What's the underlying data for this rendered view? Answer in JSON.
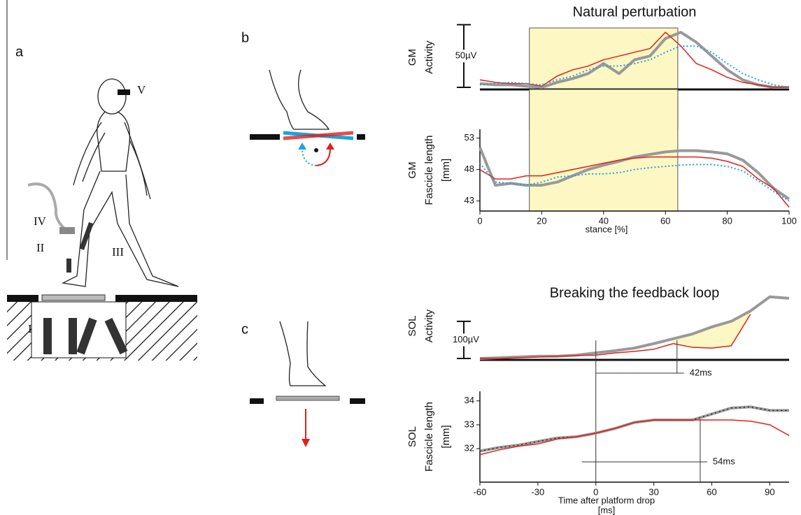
{
  "panel_labels": [
    "a",
    "b",
    "c"
  ],
  "diagram_labels": [
    "I",
    "II",
    "III",
    "IV",
    "V"
  ],
  "chart_data": [
    {
      "type": "line",
      "title": "Natural perturbation",
      "ylabel": [
        "GM",
        "Activity"
      ],
      "x": [
        0,
        5,
        10,
        15,
        20,
        25,
        30,
        35,
        40,
        45,
        50,
        55,
        60,
        65,
        70,
        75,
        80,
        85,
        90,
        95,
        100
      ],
      "xlim": [
        0,
        100
      ],
      "ylim": [
        0,
        48
      ],
      "highlight_range": [
        16,
        64
      ],
      "highlight_color": "#fdf7c3",
      "scale_bar": {
        "value": 50,
        "label": "50µV"
      },
      "series": [
        {
          "color": "#999999",
          "values": [
            3,
            2,
            2,
            1,
            0,
            4,
            7,
            11,
            19,
            11,
            22,
            25,
            39,
            44,
            36,
            25,
            14,
            6,
            2,
            0,
            0
          ]
        },
        {
          "color": "#e0201b",
          "values": [
            6,
            4,
            3,
            3,
            1,
            9,
            14,
            17,
            22,
            25,
            28,
            31,
            44,
            33,
            19,
            14,
            8,
            4,
            2,
            0,
            0
          ]
        },
        {
          "color": "#1aa3e0",
          "style": "dotted",
          "values": [
            2,
            3,
            4,
            3,
            2,
            6,
            9,
            14,
            17,
            17,
            19,
            22,
            28,
            33,
            33,
            28,
            19,
            11,
            6,
            2,
            0
          ]
        }
      ]
    },
    {
      "type": "line",
      "ylabel": [
        "GM",
        "Fascicle length",
        "[mm]"
      ],
      "xlabel": [
        "stance [%]"
      ],
      "x": [
        0,
        5,
        10,
        15,
        20,
        25,
        30,
        35,
        40,
        45,
        50,
        55,
        60,
        65,
        70,
        75,
        80,
        85,
        90,
        95,
        100
      ],
      "xlim": [
        0,
        100
      ],
      "ylim": [
        41.4,
        54.4
      ],
      "xticks": [
        0,
        20,
        40,
        60,
        80,
        100
      ],
      "yticks": [
        43,
        48,
        53
      ],
      "highlight_range": [
        16,
        64
      ],
      "highlight_color": "#fdf7c3",
      "series": [
        {
          "color": "#999999",
          "values": [
            51.5,
            45.5,
            45.8,
            45.5,
            45.5,
            46,
            47,
            48,
            48.7,
            49.3,
            50,
            50.4,
            50.8,
            51,
            51,
            50.8,
            50.5,
            49.5,
            47.5,
            45,
            43.3
          ]
        },
        {
          "color": "#e0201b",
          "values": [
            48,
            46.5,
            46.5,
            47,
            47,
            47.5,
            48,
            48.5,
            49,
            49.5,
            49.8,
            50,
            50,
            50,
            50,
            49.8,
            49.3,
            48.5,
            46.5,
            45,
            42
          ]
        },
        {
          "color": "#1aa3e0",
          "style": "dotted",
          "values": [
            49,
            46,
            45.8,
            45.5,
            46,
            46.8,
            47,
            47.3,
            47.3,
            47.5,
            48,
            48.3,
            48.5,
            48.7,
            48.8,
            48.8,
            48.5,
            47.8,
            46.2,
            44.5,
            43
          ]
        }
      ]
    },
    {
      "type": "line",
      "title": "Breaking the feedback loop",
      "ylabel": [
        "SOL",
        "Activity"
      ],
      "x": [
        -60,
        -50,
        -40,
        -30,
        -20,
        -10,
        0,
        10,
        20,
        30,
        40,
        50,
        60,
        70,
        80,
        90,
        100
      ],
      "xlim": [
        -60,
        100
      ],
      "ylim": [
        0,
        175
      ],
      "fill_between": [
        40,
        80
      ],
      "highlight_color": "#fdf7c3",
      "scale_bar": {
        "value": 100,
        "label": "100µV"
      },
      "annotations": [
        {
          "text": "42ms",
          "x": [
            0,
            42
          ]
        }
      ],
      "series": [
        {
          "color": "#999999",
          "values": [
            0,
            2,
            4,
            6,
            6,
            9,
            15,
            21,
            28,
            40,
            53,
            66,
            85,
            100,
            128,
            166,
            162
          ]
        },
        {
          "color": "#e0201b",
          "values": [
            0,
            0,
            2,
            4,
            6,
            8,
            9,
            15,
            19,
            25,
            40,
            30,
            28,
            34,
            119,
            null,
            null
          ]
        }
      ]
    },
    {
      "type": "line",
      "ylabel": [
        "SOL",
        "Fascicle length",
        "[mm]"
      ],
      "xlabel": [
        "Time after platform drop",
        "[ms]"
      ],
      "x": [
        -60,
        -50,
        -40,
        -30,
        -20,
        -10,
        0,
        10,
        20,
        30,
        40,
        50,
        60,
        70,
        80,
        90,
        100
      ],
      "xlim": [
        -60,
        100
      ],
      "ylim": [
        30.6,
        34.4
      ],
      "xticks": [
        -60,
        -30,
        0,
        30,
        60,
        90
      ],
      "yticks": [
        32,
        33,
        34
      ],
      "annotations": [
        {
          "text": "54ms",
          "x": [
            0,
            54
          ]
        }
      ],
      "series": [
        {
          "color": "#999999",
          "style": "dotted-overlay",
          "values": [
            31.9,
            32.05,
            32.15,
            32.3,
            32.45,
            32.5,
            32.65,
            32.85,
            33.1,
            33.2,
            33.2,
            33.2,
            33.45,
            33.7,
            33.75,
            33.6,
            33.6
          ]
        },
        {
          "color": "#e0201b",
          "values": [
            31.75,
            31.95,
            32.1,
            32.2,
            32.4,
            32.5,
            32.65,
            32.85,
            33.1,
            33.2,
            33.2,
            33.2,
            33.2,
            33.2,
            33.15,
            33,
            32.55
          ]
        }
      ]
    }
  ]
}
